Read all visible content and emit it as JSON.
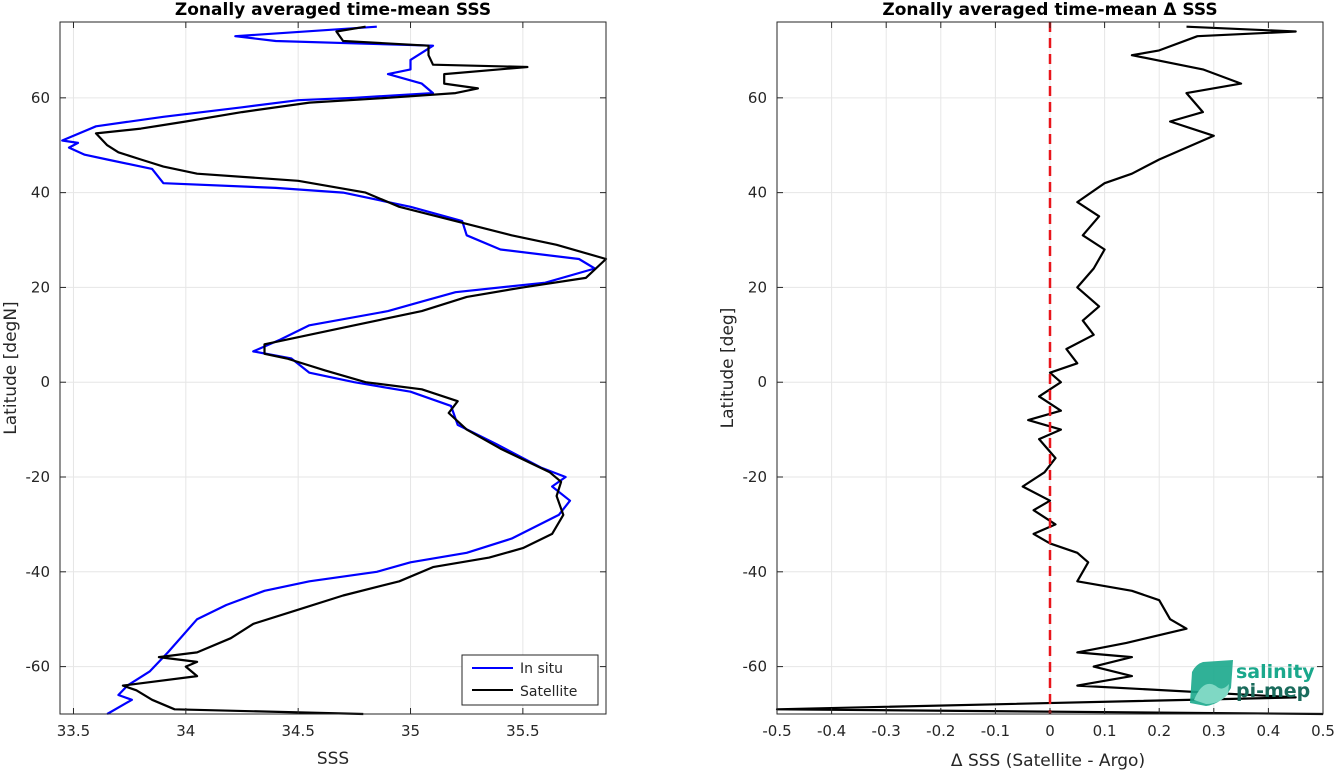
{
  "chart_data": [
    {
      "type": "line",
      "title": "Zonally averaged time-mean SSS",
      "xlabel": "SSS",
      "ylabel": "Latitude [degN]",
      "xlim": [
        33.44,
        35.87
      ],
      "ylim": [
        -70,
        76
      ],
      "xticks": [
        33.5,
        34,
        34.5,
        35,
        35.5
      ],
      "xticklabels": [
        "33.5",
        "34",
        "34.5",
        "35",
        "35.5"
      ],
      "yticks": [
        -60,
        -40,
        -20,
        0,
        20,
        40,
        60
      ],
      "yticklabels": [
        "-60",
        "-40",
        "-20",
        "0",
        "20",
        "40",
        "60"
      ],
      "grid": true,
      "legend": {
        "position": "bottom-right",
        "entries": [
          "In situ",
          "Satellite"
        ]
      },
      "series": [
        {
          "name": "In situ",
          "color": "#0000ff",
          "points": [
            [
              33.65,
              -70
            ],
            [
              33.76,
              -67
            ],
            [
              33.7,
              -66
            ],
            [
              33.74,
              -64
            ],
            [
              33.84,
              -61
            ],
            [
              33.92,
              -57
            ],
            [
              34.05,
              -50
            ],
            [
              34.18,
              -47
            ],
            [
              34.35,
              -44
            ],
            [
              34.55,
              -42
            ],
            [
              34.85,
              -40
            ],
            [
              35.0,
              -38
            ],
            [
              35.25,
              -36
            ],
            [
              35.45,
              -33
            ],
            [
              35.66,
              -28
            ],
            [
              35.71,
              -25
            ],
            [
              35.63,
              -22
            ],
            [
              35.69,
              -20
            ],
            [
              35.58,
              -18
            ],
            [
              35.38,
              -13
            ],
            [
              35.21,
              -9
            ],
            [
              35.18,
              -5
            ],
            [
              35.0,
              -2
            ],
            [
              34.75,
              0
            ],
            [
              34.55,
              2
            ],
            [
              34.47,
              5
            ],
            [
              34.3,
              6.5
            ],
            [
              34.42,
              9
            ],
            [
              34.55,
              12
            ],
            [
              34.9,
              15
            ],
            [
              35.05,
              17
            ],
            [
              35.2,
              19
            ],
            [
              35.6,
              21
            ],
            [
              35.82,
              24
            ],
            [
              35.75,
              26
            ],
            [
              35.4,
              28
            ],
            [
              35.25,
              31
            ],
            [
              35.23,
              34
            ],
            [
              35.0,
              37
            ],
            [
              34.7,
              40
            ],
            [
              34.4,
              41
            ],
            [
              33.9,
              42
            ],
            [
              33.85,
              45
            ],
            [
              33.65,
              47
            ],
            [
              33.55,
              48
            ],
            [
              33.48,
              49.5
            ],
            [
              33.52,
              50.5
            ],
            [
              33.45,
              51
            ],
            [
              33.6,
              54
            ],
            [
              33.9,
              56
            ],
            [
              34.25,
              58
            ],
            [
              34.5,
              59.5
            ],
            [
              34.75,
              60
            ],
            [
              35.1,
              61
            ],
            [
              35.05,
              63
            ],
            [
              34.9,
              65
            ],
            [
              35.0,
              66
            ],
            [
              35.0,
              68
            ],
            [
              35.05,
              69.5
            ],
            [
              35.1,
              71
            ],
            [
              34.4,
              72
            ],
            [
              34.22,
              73
            ],
            [
              34.85,
              75
            ]
          ]
        },
        {
          "name": "Satellite",
          "color": "#000000",
          "points": [
            [
              34.79,
              -70
            ],
            [
              33.95,
              -69
            ],
            [
              33.85,
              -67
            ],
            [
              33.78,
              -65
            ],
            [
              33.72,
              -64
            ],
            [
              34.05,
              -62
            ],
            [
              34.0,
              -60
            ],
            [
              34.05,
              -59
            ],
            [
              33.88,
              -58
            ],
            [
              34.05,
              -57
            ],
            [
              34.2,
              -54
            ],
            [
              34.3,
              -51
            ],
            [
              34.5,
              -48
            ],
            [
              34.7,
              -45
            ],
            [
              34.95,
              -42
            ],
            [
              35.1,
              -39
            ],
            [
              35.35,
              -37
            ],
            [
              35.5,
              -35
            ],
            [
              35.63,
              -32
            ],
            [
              35.68,
              -28
            ],
            [
              35.65,
              -24
            ],
            [
              35.67,
              -21
            ],
            [
              35.62,
              -19
            ],
            [
              35.4,
              -14
            ],
            [
              35.25,
              -10
            ],
            [
              35.17,
              -6.5
            ],
            [
              35.21,
              -4
            ],
            [
              35.05,
              -1.5
            ],
            [
              34.8,
              0
            ],
            [
              34.62,
              2.5
            ],
            [
              34.45,
              5
            ],
            [
              34.35,
              6
            ],
            [
              34.35,
              8
            ],
            [
              34.5,
              9.5
            ],
            [
              34.75,
              12
            ],
            [
              35.05,
              15
            ],
            [
              35.25,
              18
            ],
            [
              35.5,
              20
            ],
            [
              35.78,
              22
            ],
            [
              35.87,
              26
            ],
            [
              35.65,
              29
            ],
            [
              35.45,
              31
            ],
            [
              35.2,
              34
            ],
            [
              34.95,
              37
            ],
            [
              34.8,
              40
            ],
            [
              34.5,
              42.5
            ],
            [
              34.05,
              44
            ],
            [
              33.9,
              45.5
            ],
            [
              33.8,
              47
            ],
            [
              33.7,
              48.5
            ],
            [
              33.65,
              50
            ],
            [
              33.6,
              52.5
            ],
            [
              33.8,
              53.5
            ],
            [
              34.0,
              55
            ],
            [
              34.25,
              57
            ],
            [
              34.55,
              59
            ],
            [
              34.9,
              60
            ],
            [
              35.2,
              61
            ],
            [
              35.3,
              62
            ],
            [
              35.15,
              63
            ],
            [
              35.15,
              65
            ],
            [
              35.52,
              66.5
            ],
            [
              35.1,
              67
            ],
            [
              35.08,
              69
            ],
            [
              35.08,
              71
            ],
            [
              34.7,
              72
            ],
            [
              34.67,
              74
            ],
            [
              34.8,
              75
            ]
          ]
        }
      ]
    },
    {
      "type": "line",
      "title": "Zonally averaged time-mean Δ SSS",
      "xlabel": "Δ SSS (Satellite - Argo)",
      "ylabel": "Latitude [deg]",
      "xlim": [
        -0.5,
        0.5
      ],
      "ylim": [
        -70,
        76
      ],
      "xticks": [
        -0.5,
        -0.4,
        -0.3,
        -0.2,
        -0.1,
        0,
        0.1,
        0.2,
        0.3,
        0.4,
        0.5
      ],
      "xticklabels": [
        "-0.5",
        "-0.4",
        "-0.3",
        "-0.2",
        "-0.1",
        "0",
        "0.1",
        "0.2",
        "0.3",
        "0.4",
        "0.5"
      ],
      "yticks": [
        -60,
        -40,
        -20,
        0,
        20,
        40,
        60
      ],
      "yticklabels": [
        "-60",
        "-40",
        "-20",
        "0",
        "20",
        "40",
        "60"
      ],
      "grid": true,
      "reference_line": {
        "x": 0,
        "color": "#e8151b",
        "style": "dashed"
      },
      "series": [
        {
          "name": "",
          "color": "#000000",
          "points": [
            [
              0.5,
              -70
            ],
            [
              -0.5,
              -69
            ],
            [
              0.45,
              -66.5
            ],
            [
              0.05,
              -64
            ],
            [
              0.15,
              -62
            ],
            [
              0.08,
              -60
            ],
            [
              0.15,
              -58
            ],
            [
              0.05,
              -57
            ],
            [
              0.14,
              -55
            ],
            [
              0.25,
              -52
            ],
            [
              0.22,
              -50
            ],
            [
              0.2,
              -46
            ],
            [
              0.15,
              -44
            ],
            [
              0.05,
              -42
            ],
            [
              0.07,
              -38
            ],
            [
              0.05,
              -36
            ],
            [
              0.0,
              -34
            ],
            [
              -0.03,
              -32
            ],
            [
              0.01,
              -30
            ],
            [
              -0.03,
              -27
            ],
            [
              0.0,
              -25
            ],
            [
              -0.05,
              -22
            ],
            [
              -0.01,
              -19
            ],
            [
              0.01,
              -16
            ],
            [
              -0.02,
              -12
            ],
            [
              0.02,
              -10
            ],
            [
              -0.04,
              -8
            ],
            [
              0.02,
              -6
            ],
            [
              -0.02,
              -3
            ],
            [
              0.02,
              0
            ],
            [
              0.0,
              2
            ],
            [
              0.05,
              4
            ],
            [
              0.03,
              7
            ],
            [
              0.08,
              10
            ],
            [
              0.06,
              13
            ],
            [
              0.09,
              16
            ],
            [
              0.05,
              20
            ],
            [
              0.08,
              24
            ],
            [
              0.1,
              28
            ],
            [
              0.06,
              31
            ],
            [
              0.09,
              35
            ],
            [
              0.05,
              38
            ],
            [
              0.1,
              42
            ],
            [
              0.15,
              44
            ],
            [
              0.2,
              47
            ],
            [
              0.3,
              52
            ],
            [
              0.22,
              55
            ],
            [
              0.28,
              57
            ],
            [
              0.25,
              61
            ],
            [
              0.35,
              63
            ],
            [
              0.28,
              66
            ],
            [
              0.15,
              69
            ],
            [
              0.2,
              70
            ],
            [
              0.27,
              73
            ],
            [
              0.45,
              74
            ],
            [
              0.25,
              75
            ]
          ]
        }
      ]
    }
  ],
  "logo": {
    "line1": "salinity",
    "line2": "pi-mep",
    "color": "#1aa88c"
  }
}
